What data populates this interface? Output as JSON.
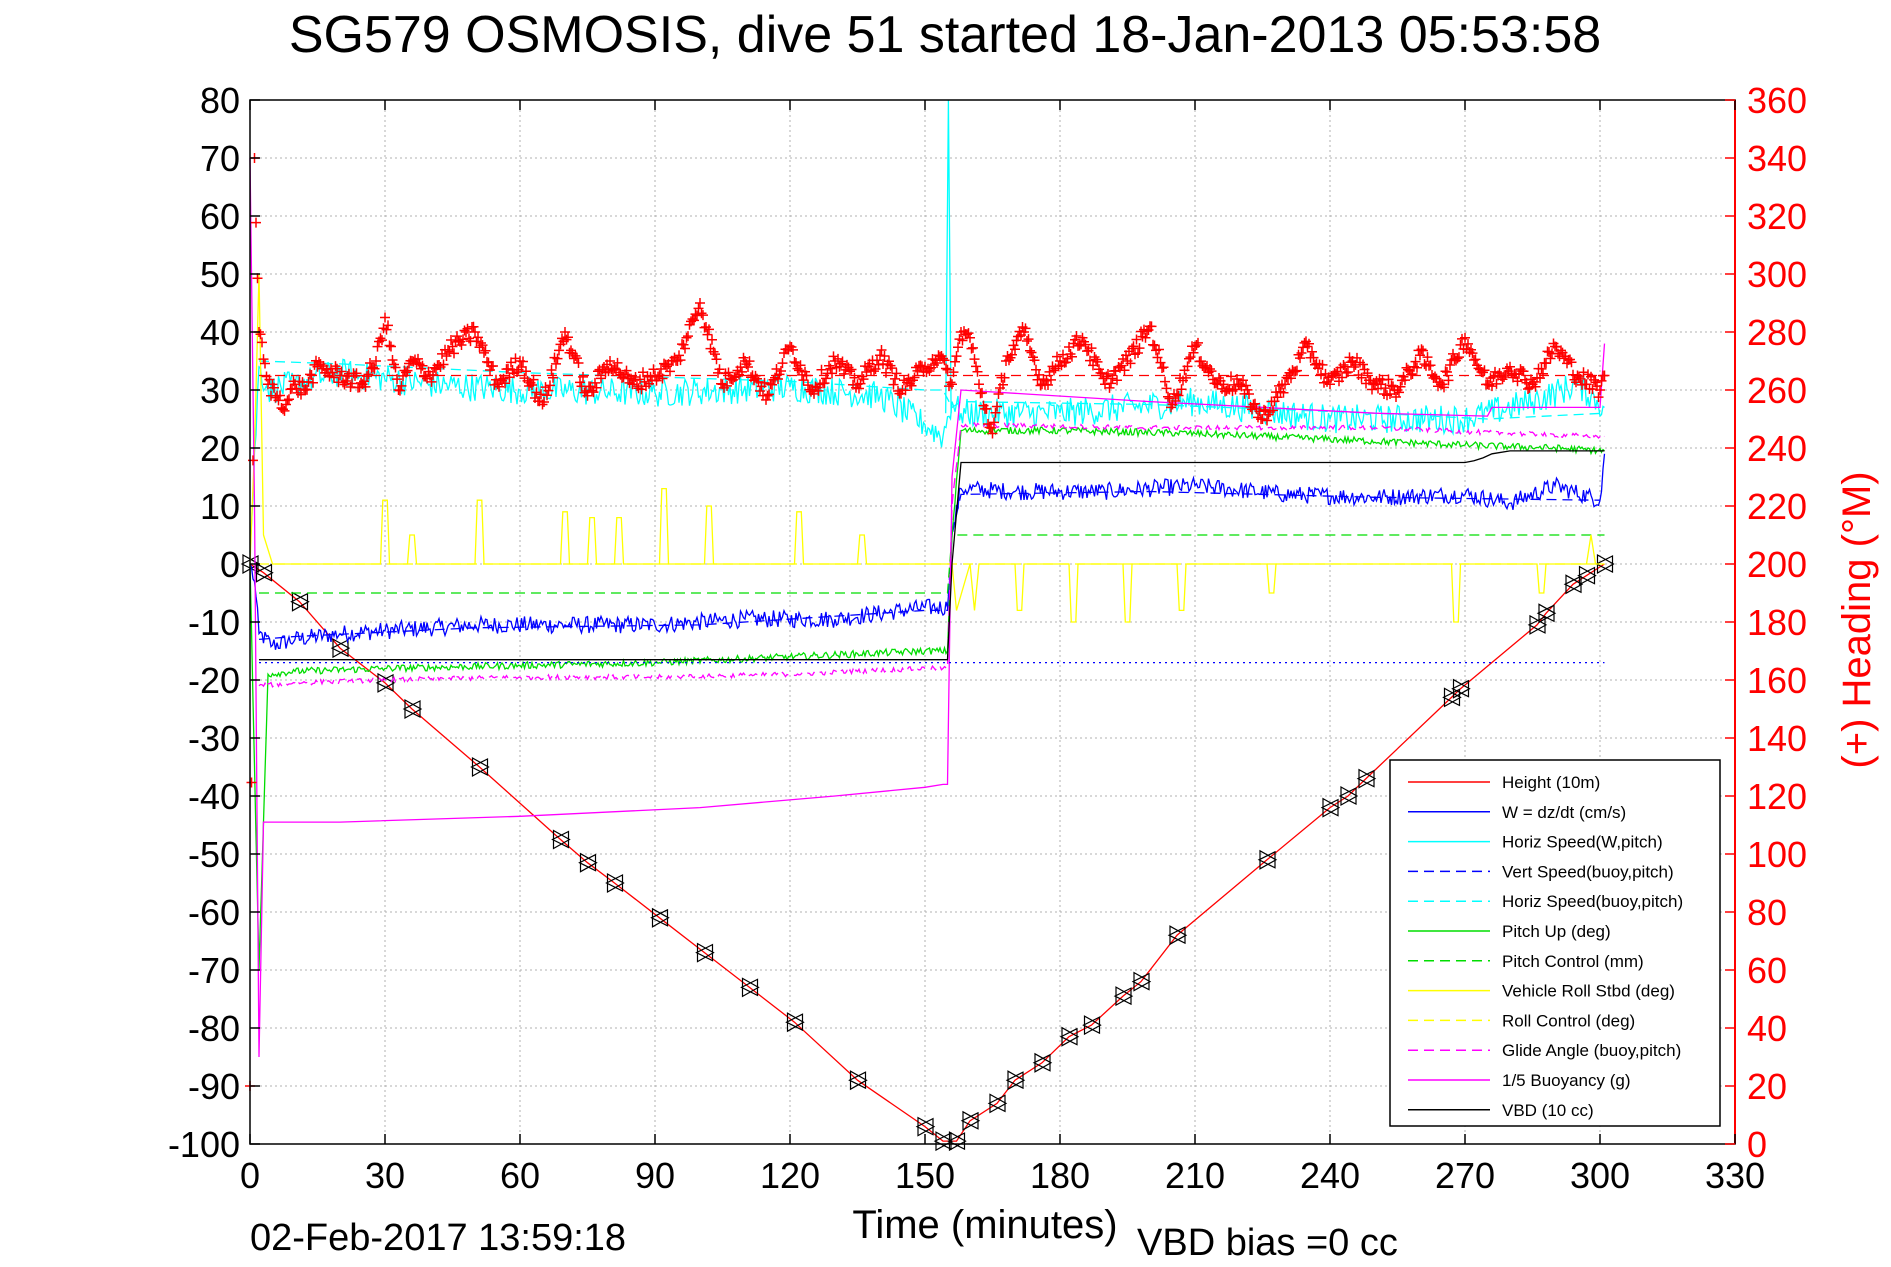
{
  "chart_data": {
    "type": "line",
    "title": "SG579 OSMOSIS, dive 51 started 18-Jan-2013 05:53:58",
    "xlabel": "Time (minutes)",
    "ylabel_right": "(+) Heading (°M)",
    "footer_date": "02-Feb-2017 13:59:18",
    "footer_note": "VBD bias =0 cc",
    "xlim": [
      0,
      330
    ],
    "ylim_left": [
      -100,
      80
    ],
    "ylim_right": [
      0,
      360
    ],
    "x_ticks": [
      0,
      30,
      60,
      90,
      120,
      150,
      180,
      210,
      240,
      270,
      300,
      330
    ],
    "y_left_ticks": [
      -100,
      -90,
      -80,
      -70,
      -60,
      -50,
      -40,
      -30,
      -20,
      -10,
      0,
      10,
      20,
      30,
      40,
      50,
      60,
      70,
      80
    ],
    "y_right_ticks": [
      0,
      20,
      40,
      60,
      80,
      100,
      120,
      140,
      160,
      180,
      200,
      220,
      240,
      260,
      280,
      300,
      320,
      340,
      360
    ],
    "grid": true,
    "legend_position": "bottom-right",
    "legend": [
      {
        "label": "Height (10m)",
        "color": "#ff0000",
        "dash": "solid"
      },
      {
        "label": "W = dz/dt (cm/s)",
        "color": "#0000ff",
        "dash": "solid"
      },
      {
        "label": "Horiz Speed(W,pitch)",
        "color": "#00ffff",
        "dash": "solid"
      },
      {
        "label": "Vert Speed(buoy,pitch)",
        "color": "#0000ff",
        "dash": "dashed"
      },
      {
        "label": "Horiz Speed(buoy,pitch)",
        "color": "#00ffff",
        "dash": "dashed"
      },
      {
        "label": "Pitch Up (deg)",
        "color": "#00dd00",
        "dash": "solid"
      },
      {
        "label": "Pitch Control (mm)",
        "color": "#00dd00",
        "dash": "dashed"
      },
      {
        "label": "Vehicle Roll Stbd (deg)",
        "color": "#ffff00",
        "dash": "solid"
      },
      {
        "label": "Roll Control (deg)",
        "color": "#ffff00",
        "dash": "dashed"
      },
      {
        "label": "Glide Angle (buoy,pitch)",
        "color": "#ff00ff",
        "dash": "dashed"
      },
      {
        "label": "1/5 Buoyancy (g)",
        "color": "#ff00ff",
        "dash": "solid"
      },
      {
        "label": "VBD (10 cc)",
        "color": "#000000",
        "dash": "solid"
      }
    ],
    "series": [
      {
        "name": "Height (10m)",
        "axis": "left",
        "color": "#ff0000",
        "dash": "solid",
        "x": [
          0,
          3,
          11,
          20,
          30,
          36,
          51,
          69,
          75,
          81,
          91,
          101,
          111,
          121,
          135,
          150,
          154,
          157,
          160,
          166,
          170,
          176,
          182,
          187,
          194,
          198,
          206,
          226,
          240,
          244,
          248,
          267,
          269,
          286,
          288,
          294,
          297,
          301
        ],
        "y": [
          0,
          -1.5,
          -6.5,
          -14.5,
          -20.5,
          -25,
          -35,
          -47.5,
          -51.5,
          -55,
          -61,
          -67,
          -73,
          -79,
          -89,
          -97,
          -99.5,
          -99.5,
          -96,
          -93,
          -89,
          -86,
          -81.5,
          -79.5,
          -74.5,
          -72,
          -64,
          -51,
          -42,
          -40,
          -37,
          -23,
          -21.5,
          -10.5,
          -8.5,
          -3.5,
          -2,
          0
        ]
      },
      {
        "name": "Triangle markers",
        "axis": "left",
        "color": "#000000",
        "dash": "none",
        "markers": "triangle",
        "x": [
          0,
          3,
          11,
          20,
          30,
          36,
          51,
          69,
          75,
          81,
          91,
          101,
          111,
          121,
          135,
          150,
          154,
          157,
          160,
          166,
          170,
          176,
          182,
          187,
          194,
          198,
          206,
          226,
          240,
          244,
          248,
          267,
          269,
          286,
          288,
          294,
          297,
          301
        ],
        "y": [
          0,
          -1.5,
          -6.5,
          -14.5,
          -20.5,
          -25,
          -35,
          -47.5,
          -51.5,
          -55,
          -61,
          -67,
          -73,
          -79,
          -89,
          -97,
          -99.5,
          -99.5,
          -96,
          -93,
          -89,
          -86,
          -81.5,
          -79.5,
          -74.5,
          -72,
          -64,
          -51,
          -42,
          -40,
          -37,
          -23,
          -21.5,
          -10.5,
          -8.5,
          -3.5,
          -2,
          0
        ]
      },
      {
        "name": "W = dz/dt (cm/s)",
        "axis": "left",
        "color": "#0000ff",
        "dash": "solid",
        "noise": 1.5,
        "x": [
          0,
          1,
          2,
          5,
          10,
          20,
          30,
          50,
          70,
          90,
          110,
          130,
          150,
          155,
          156,
          158,
          170,
          190,
          210,
          230,
          250,
          270,
          280,
          290,
          300,
          301
        ],
        "y": [
          0,
          -3,
          -12,
          -14,
          -13,
          -12,
          -11.5,
          -10.5,
          -10.5,
          -10.5,
          -9.5,
          -9.5,
          -7.5,
          -7.5,
          5,
          13,
          12.5,
          12.5,
          13.5,
          12,
          11.5,
          12,
          10.5,
          13.5,
          11,
          19
        ]
      },
      {
        "name": "Vert Speed(buoy,pitch)",
        "axis": "left",
        "color": "#0000ff",
        "dash": "dashed",
        "x": [
          2,
          10,
          50,
          100,
          150,
          155,
          156,
          158,
          200,
          250,
          300
        ],
        "y": [
          -13,
          -12.5,
          -11,
          -10.5,
          -8,
          -8,
          5,
          12,
          12.5,
          11.5,
          11
        ]
      },
      {
        "name": "Horiz Speed(W,pitch)",
        "axis": "left",
        "color": "#00ffff",
        "dash": "solid",
        "noise": 2.5,
        "x": [
          0,
          2,
          4,
          10,
          20,
          40,
          60,
          90,
          120,
          140,
          150,
          154,
          156,
          158,
          180,
          210,
          240,
          270,
          285,
          295,
          301
        ],
        "y": [
          2,
          34,
          30,
          31,
          33,
          31,
          30,
          29.5,
          30.5,
          29,
          24,
          22,
          28,
          26,
          26,
          28,
          25,
          25,
          28,
          31,
          27
        ]
      },
      {
        "name": "Horiz Speed(buoy,pitch)",
        "axis": "left",
        "color": "#00ffff",
        "dash": "dashed",
        "x": [
          2,
          20,
          60,
          120,
          150,
          154,
          156,
          158,
          200,
          250,
          275,
          301
        ],
        "y": [
          35,
          34.5,
          33,
          31.5,
          30,
          30,
          27,
          28,
          27.5,
          26,
          25,
          26
        ]
      },
      {
        "name": "Cyan spike",
        "axis": "left",
        "color": "#00ffff",
        "dash": "solid",
        "x": [
          154.6,
          155.2,
          155.8
        ],
        "y": [
          26,
          80,
          26
        ]
      },
      {
        "name": "Pitch Up (deg)",
        "axis": "left",
        "color": "#00dd00",
        "dash": "solid",
        "noise": 0.6,
        "x": [
          0,
          2,
          4,
          10,
          30,
          60,
          90,
          120,
          150,
          155,
          156,
          158,
          180,
          210,
          240,
          270,
          290,
          301
        ],
        "y": [
          0,
          -70,
          -19,
          -18.5,
          -18,
          -17.5,
          -17,
          -16,
          -15,
          -15,
          5,
          23,
          23,
          22.5,
          21.5,
          20.5,
          20,
          19.5
        ]
      },
      {
        "name": "Pitch Control (mm)",
        "axis": "left",
        "color": "#00dd00",
        "dash": "dashed",
        "x": [
          2,
          155,
          156,
          301
        ],
        "y": [
          -5,
          -5,
          5,
          5
        ]
      },
      {
        "name": "Vehicle Roll Stbd (deg)",
        "axis": "left",
        "color": "#ffff00",
        "dash": "solid",
        "x": [
          0,
          1,
          2,
          3,
          5,
          29,
          29.5,
          30.5,
          31,
          35,
          35.5,
          36.5,
          37,
          50,
          50.5,
          51.5,
          52,
          69,
          69.5,
          70.5,
          71,
          75,
          75.5,
          76.5,
          77,
          81,
          81.5,
          82.5,
          83,
          91,
          91.5,
          92.5,
          93,
          101,
          101.5,
          102.5,
          103,
          121,
          121.5,
          122.5,
          123,
          135,
          135.5,
          136.5,
          137,
          154,
          155,
          156,
          157,
          160,
          161,
          162,
          170,
          170.5,
          171.5,
          172,
          182,
          182.5,
          183.5,
          184,
          194,
          194.5,
          195.5,
          196,
          206,
          206.5,
          207.5,
          208,
          226,
          226.5,
          227.5,
          228,
          267,
          267.5,
          268.5,
          269,
          286,
          286.5,
          287.5,
          288,
          297,
          298,
          299,
          301
        ],
        "y": [
          0,
          20,
          50,
          5,
          0,
          0,
          11,
          11,
          0,
          0,
          5,
          5,
          0,
          0,
          11,
          11,
          0,
          0,
          9,
          9,
          0,
          0,
          8,
          8,
          0,
          0,
          8,
          8,
          0,
          0,
          13,
          13,
          0,
          0,
          10,
          10,
          0,
          0,
          9,
          9,
          0,
          0,
          5,
          5,
          0,
          0,
          0,
          0,
          -8,
          0,
          -8,
          0,
          0,
          -8,
          -8,
          0,
          0,
          -10,
          -10,
          0,
          0,
          -10,
          -10,
          0,
          0,
          -8,
          -8,
          0,
          0,
          -5,
          -5,
          0,
          0,
          -10,
          -10,
          0,
          0,
          -5,
          -5,
          0,
          0,
          5,
          0,
          0
        ]
      },
      {
        "name": "Roll Control (deg)",
        "axis": "left",
        "color": "#ffff00",
        "dash": "dashed",
        "x": [
          2,
          301
        ],
        "y": [
          0,
          0
        ]
      },
      {
        "name": "Glide Angle (buoy,pitch)",
        "axis": "left",
        "color": "#ff00ff",
        "dash": "dashed",
        "noise": 0.4,
        "x": [
          2,
          10,
          30,
          60,
          90,
          120,
          150,
          155,
          156,
          158,
          200,
          250,
          280,
          301
        ],
        "y": [
          -21,
          -20.5,
          -20,
          -19.5,
          -19.5,
          -19,
          -18,
          -18,
          10,
          24,
          23.5,
          23.5,
          22.5,
          22
        ]
      },
      {
        "name": "1/5 Buoyancy (g)",
        "axis": "left",
        "color": "#ff00ff",
        "dash": "solid",
        "x": [
          0,
          1,
          2,
          3,
          20,
          60,
          100,
          130,
          150,
          154,
          155,
          156,
          158,
          200,
          250,
          275,
          276,
          300,
          301
        ],
        "y": [
          70,
          10,
          -85,
          -44.5,
          -44.5,
          -43.5,
          -42,
          -40,
          -38.5,
          -38,
          -38,
          15,
          30,
          28,
          26,
          25.5,
          27,
          27,
          38
        ]
      },
      {
        "name": "VBD (10 cc)",
        "axis": "left",
        "color": "#000000",
        "dash": "solid",
        "x": [
          2,
          155,
          156,
          158,
          200,
          270,
          272,
          274,
          276,
          280,
          300,
          301
        ],
        "y": [
          -16.5,
          -16.5,
          0,
          17.5,
          17.5,
          17.5,
          17.8,
          18.3,
          19,
          19.5,
          19.5,
          19.5
        ]
      },
      {
        "name": "(+) Heading (°M)",
        "axis": "right",
        "color": "#ff0000",
        "dash": "none",
        "markers": "plus",
        "noise": 3,
        "x": [
          0,
          1,
          2,
          4,
          6,
          8,
          10,
          12,
          15,
          20,
          25,
          28,
          30,
          33,
          36,
          40,
          45,
          50,
          55,
          60,
          65,
          70,
          75,
          80,
          85,
          90,
          95,
          100,
          105,
          110,
          115,
          120,
          125,
          130,
          135,
          140,
          145,
          150,
          153,
          156,
          158,
          160,
          162,
          165,
          168,
          172,
          176,
          180,
          185,
          190,
          195,
          200,
          205,
          210,
          215,
          220,
          225,
          230,
          235,
          240,
          245,
          250,
          255,
          260,
          265,
          270,
          275,
          280,
          285,
          290,
          295,
          300,
          301
        ],
        "y": [
          20,
          340,
          280,
          262,
          258,
          255,
          262,
          260,
          268,
          265,
          262,
          270,
          285,
          260,
          270,
          265,
          275,
          280,
          262,
          270,
          255,
          280,
          258,
          270,
          262,
          265,
          270,
          290,
          262,
          270,
          258,
          275,
          260,
          270,
          262,
          272,
          260,
          268,
          272,
          262,
          280,
          278,
          262,
          245,
          270,
          280,
          262,
          270,
          278,
          262,
          270,
          282,
          255,
          275,
          262,
          262,
          250,
          262,
          275,
          262,
          270,
          262,
          260,
          272,
          262,
          278,
          262,
          268,
          262,
          275,
          265,
          260,
          265
        ]
      },
      {
        "name": "Heading reference",
        "axis": "right",
        "color": "#ff0000",
        "dash": "dashed",
        "x": [
          2,
          301
        ],
        "y": [
          265,
          265
        ]
      },
      {
        "name": "Reference lower",
        "axis": "right",
        "color": "#0000ff",
        "dash": "dotted",
        "x": [
          2,
          301
        ],
        "y": [
          166,
          166
        ]
      }
    ]
  }
}
